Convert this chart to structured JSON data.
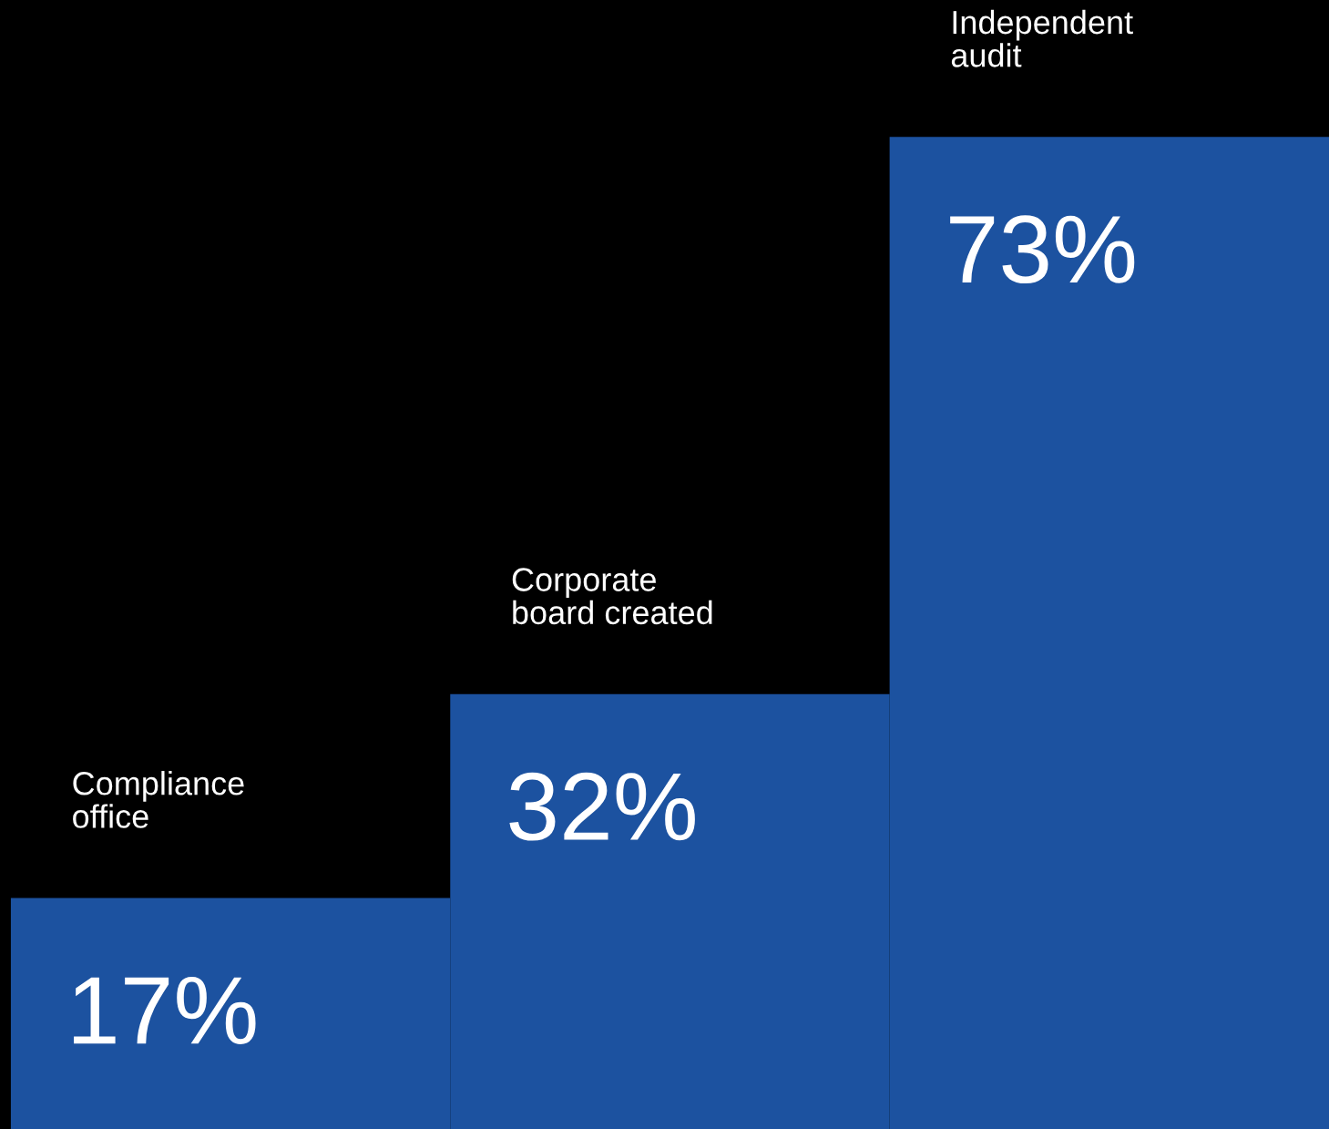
{
  "chart_data": {
    "type": "bar",
    "categories": [
      "Compliance\noffice",
      "Corporate\nboard created",
      "Independent\naudit"
    ],
    "values": [
      17,
      32,
      73
    ],
    "color": "#1c52a0",
    "value_labels": [
      "17%",
      "32%",
      "73%"
    ]
  }
}
